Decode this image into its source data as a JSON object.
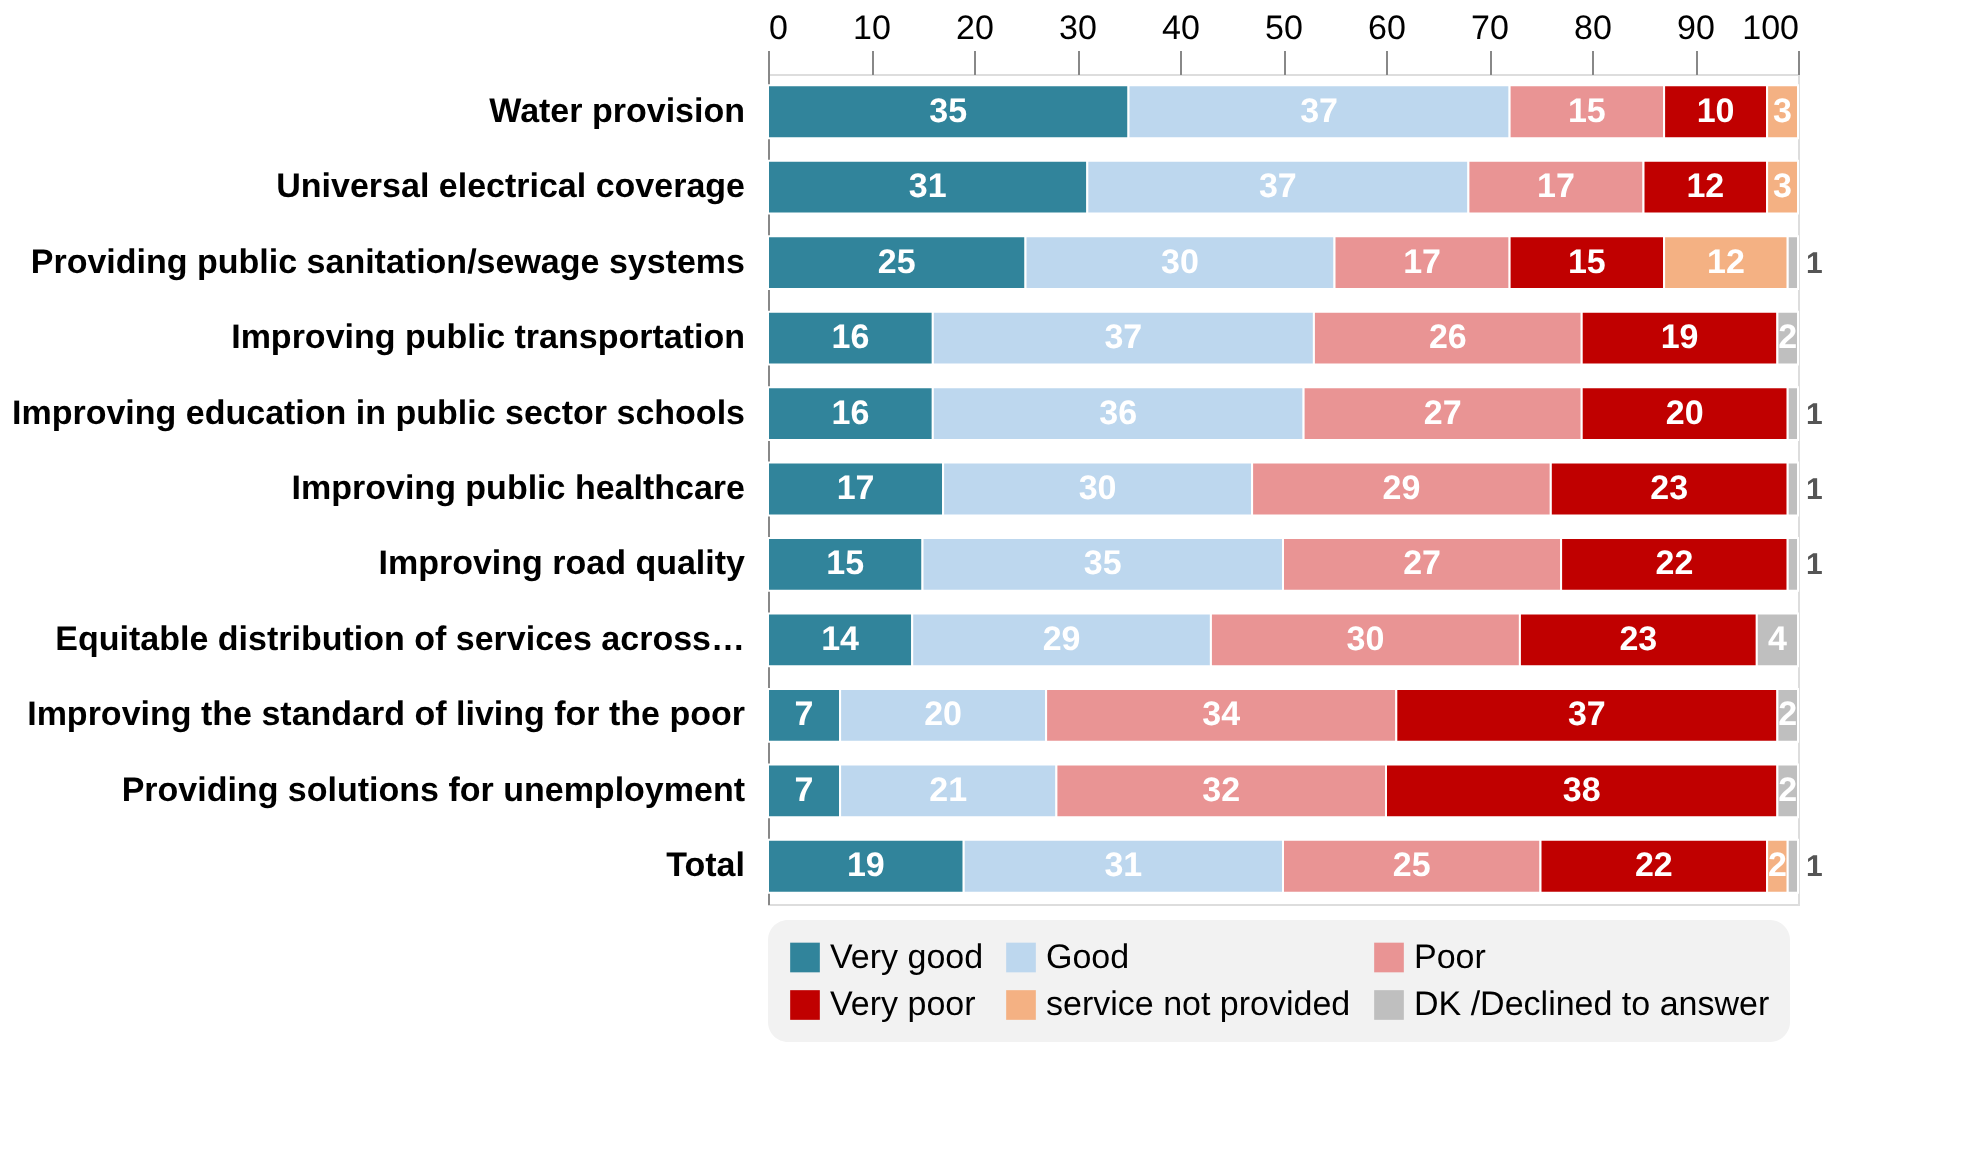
{
  "chart_data": {
    "type": "bar",
    "orientation": "horizontal",
    "stacked": true,
    "data_labels": true,
    "grid": false,
    "legend": "bottom",
    "categories": [
      "Water provision",
      "Universal electrical coverage",
      "Providing public sanitation/sewage systems",
      "Improving public transportation",
      "Improving education in public sector schools",
      "Improving public healthcare",
      "Improving road quality",
      "Equitable distribution of services across…",
      "Improving the standard of living for the poor",
      "Providing solutions for unemployment",
      "Total"
    ],
    "xlim": [
      0,
      100
    ],
    "xticks": [
      0,
      10,
      20,
      30,
      40,
      50,
      60,
      70,
      80,
      90,
      100
    ],
    "series": [
      {
        "name": "Very good",
        "color": "#31849b",
        "values": [
          35,
          31,
          25,
          16,
          16,
          17,
          15,
          14,
          7,
          7,
          19
        ]
      },
      {
        "name": "Good",
        "color": "#bdd7ee",
        "values": [
          37,
          37,
          30,
          37,
          36,
          30,
          35,
          29,
          20,
          21,
          31
        ]
      },
      {
        "name": "Poor",
        "color": "#e99494",
        "values": [
          15,
          17,
          17,
          26,
          27,
          29,
          27,
          30,
          34,
          32,
          25
        ]
      },
      {
        "name": "Very poor",
        "color": "#c00000",
        "values": [
          10,
          12,
          15,
          19,
          20,
          23,
          22,
          23,
          37,
          38,
          22
        ]
      },
      {
        "name": "service not provided",
        "color": "#f4b183",
        "values": [
          3,
          3,
          12,
          null,
          null,
          null,
          null,
          null,
          null,
          null,
          2
        ]
      },
      {
        "name": "DK /Declined to answer",
        "color": "#bfbfbf",
        "values": [
          null,
          null,
          1,
          2,
          1,
          1,
          1,
          4,
          2,
          2,
          1
        ]
      }
    ]
  }
}
